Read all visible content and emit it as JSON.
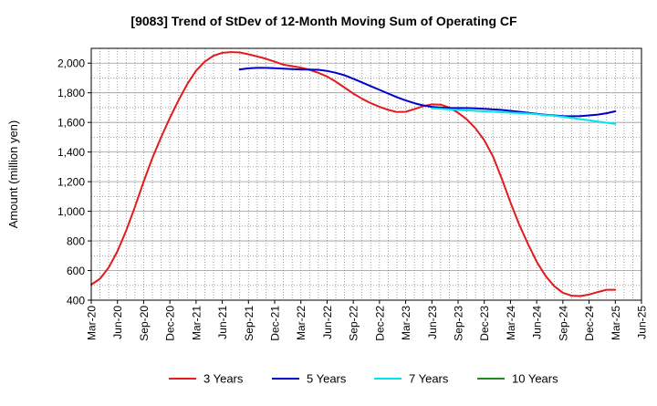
{
  "chart_data": {
    "type": "line",
    "title": "[9083]  Trend of StDev of 12-Month Moving Sum of Operating CF",
    "xlabel": "",
    "ylabel": "Amount (million yen)",
    "ylim": [
      400,
      2100
    ],
    "yticks": [
      400,
      600,
      800,
      1000,
      1200,
      1400,
      1600,
      1800,
      2000
    ],
    "ytick_labels": [
      "400",
      "600",
      "800",
      "1,000",
      "1,200",
      "1,400",
      "1,600",
      "1,800",
      "2,000"
    ],
    "x_start": "2020-03",
    "x_end": "2025-06",
    "xtick_labels": [
      "Mar-20",
      "Jun-20",
      "Sep-20",
      "Dec-20",
      "Mar-21",
      "Jun-21",
      "Sep-21",
      "Dec-21",
      "Mar-22",
      "Jun-22",
      "Sep-22",
      "Dec-22",
      "Mar-23",
      "Jun-23",
      "Sep-23",
      "Dec-23",
      "Mar-24",
      "Jun-24",
      "Sep-24",
      "Dec-24",
      "Mar-25",
      "Jun-25"
    ],
    "grid": true,
    "legend_position": "bottom",
    "series": [
      {
        "name": "3 Years",
        "color": "#e41a1c",
        "x": [
          "2020-03",
          "2020-04",
          "2020-05",
          "2020-06",
          "2020-07",
          "2020-08",
          "2020-09",
          "2020-10",
          "2020-11",
          "2020-12",
          "2021-01",
          "2021-02",
          "2021-03",
          "2021-04",
          "2021-05",
          "2021-06",
          "2021-07",
          "2021-08",
          "2021-09",
          "2021-10",
          "2021-11",
          "2021-12",
          "2022-01",
          "2022-02",
          "2022-03",
          "2022-04",
          "2022-05",
          "2022-06",
          "2022-07",
          "2022-08",
          "2022-09",
          "2022-10",
          "2022-11",
          "2022-12",
          "2023-01",
          "2023-02",
          "2023-03",
          "2023-04",
          "2023-05",
          "2023-06",
          "2023-07",
          "2023-08",
          "2023-09",
          "2023-10",
          "2023-11",
          "2023-12",
          "2024-01",
          "2024-02",
          "2024-03",
          "2024-04",
          "2024-05",
          "2024-06",
          "2024-07",
          "2024-08",
          "2024-09",
          "2024-10",
          "2024-11",
          "2024-12",
          "2025-01",
          "2025-02",
          "2025-03"
        ],
        "values": [
          505,
          545,
          620,
          730,
          870,
          1030,
          1200,
          1360,
          1500,
          1630,
          1750,
          1860,
          1950,
          2010,
          2050,
          2070,
          2075,
          2072,
          2060,
          2045,
          2030,
          2010,
          1990,
          1980,
          1970,
          1955,
          1935,
          1910,
          1875,
          1835,
          1795,
          1760,
          1730,
          1705,
          1685,
          1670,
          1672,
          1690,
          1710,
          1722,
          1720,
          1700,
          1665,
          1620,
          1560,
          1480,
          1370,
          1220,
          1060,
          910,
          780,
          660,
          565,
          495,
          450,
          430,
          428,
          438,
          455,
          470,
          470
        ]
      },
      {
        "name": "5 Years",
        "color": "#0000cc",
        "x": [
          "2021-08",
          "2021-09",
          "2021-10",
          "2021-11",
          "2021-12",
          "2022-01",
          "2022-02",
          "2022-03",
          "2022-04",
          "2022-05",
          "2022-06",
          "2022-07",
          "2022-08",
          "2022-09",
          "2022-10",
          "2022-11",
          "2022-12",
          "2023-01",
          "2023-02",
          "2023-03",
          "2023-04",
          "2023-05",
          "2023-06",
          "2023-07",
          "2023-08",
          "2023-09",
          "2023-10",
          "2023-11",
          "2023-12",
          "2024-01",
          "2024-02",
          "2024-03",
          "2024-04",
          "2024-05",
          "2024-06",
          "2024-07",
          "2024-08",
          "2024-09",
          "2024-10",
          "2024-11",
          "2024-12",
          "2025-01",
          "2025-02",
          "2025-03"
        ],
        "values": [
          1958,
          1965,
          1968,
          1968,
          1966,
          1963,
          1960,
          1958,
          1957,
          1955,
          1948,
          1935,
          1918,
          1895,
          1870,
          1845,
          1820,
          1795,
          1770,
          1748,
          1730,
          1715,
          1705,
          1700,
          1698,
          1697,
          1697,
          1695,
          1692,
          1688,
          1684,
          1678,
          1672,
          1665,
          1658,
          1652,
          1647,
          1643,
          1642,
          1643,
          1647,
          1653,
          1662,
          1675
        ]
      },
      {
        "name": "7 Years",
        "color": "#00e5ee",
        "x": [
          "2023-06",
          "2023-07",
          "2023-08",
          "2023-09",
          "2023-10",
          "2023-11",
          "2023-12",
          "2024-01",
          "2024-02",
          "2024-03",
          "2024-04",
          "2024-05",
          "2024-06",
          "2024-07",
          "2024-08",
          "2024-09",
          "2024-10",
          "2024-11",
          "2024-12",
          "2025-01",
          "2025-02",
          "2025-03"
        ],
        "values": [
          1695,
          1692,
          1688,
          1684,
          1681,
          1678,
          1675,
          1672,
          1669,
          1666,
          1663,
          1660,
          1655,
          1650,
          1645,
          1638,
          1630,
          1622,
          1614,
          1606,
          1598,
          1590
        ]
      },
      {
        "name": "10 Years",
        "color": "#228b22",
        "x": [],
        "values": []
      }
    ]
  }
}
